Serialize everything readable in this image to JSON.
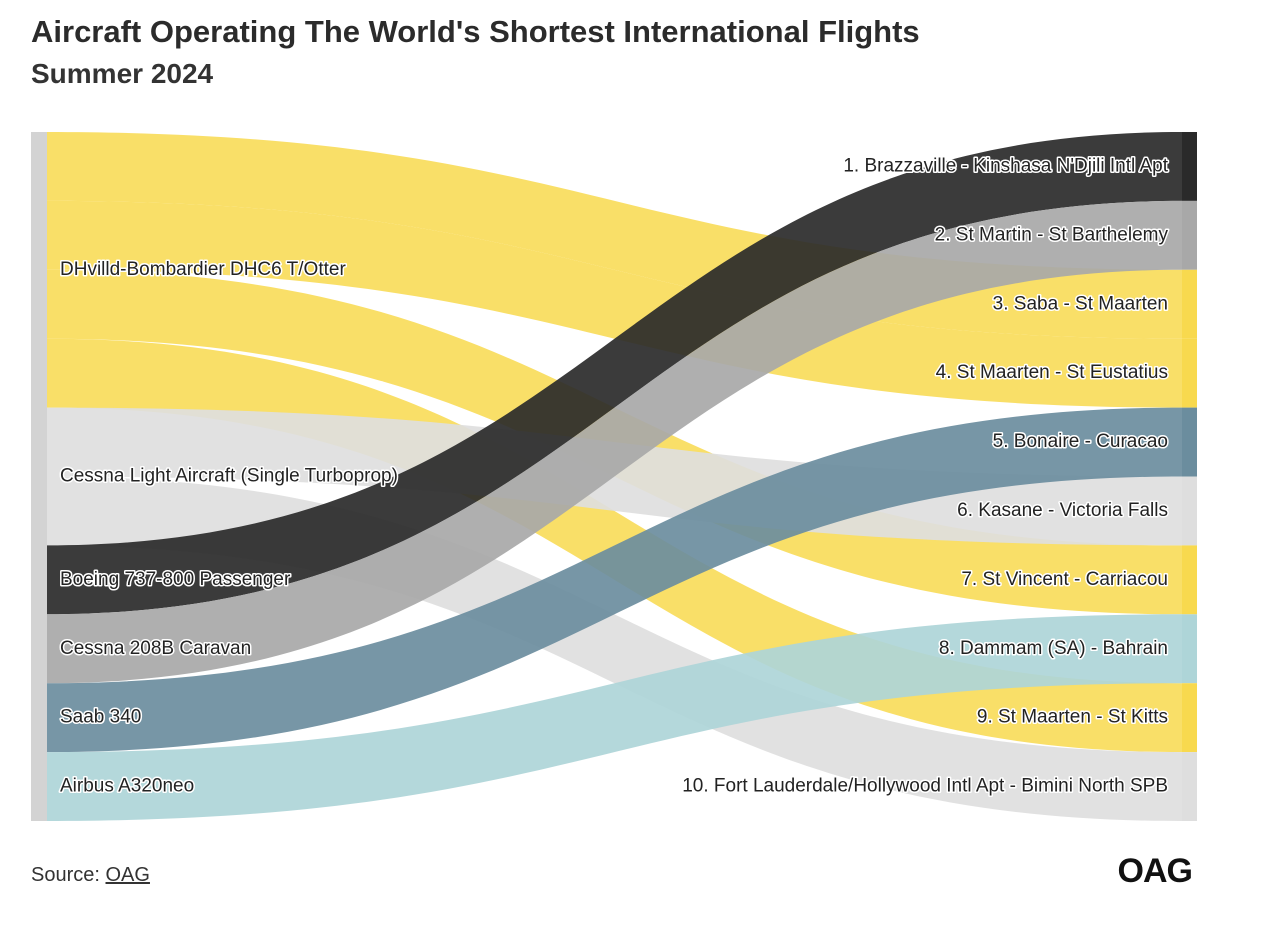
{
  "header": {
    "title": "Aircraft Operating The World's Shortest International Flights",
    "subtitle": "Summer 2024"
  },
  "footer": {
    "source_prefix": "Source:",
    "source_link": "OAG",
    "logo": "OAG"
  },
  "colors": {
    "yellow": "#f8d94e",
    "light_gray": "#dedede",
    "black": "#2a2a2a",
    "mid_gray": "#a8a8a8",
    "slate_blue": "#6b8d9e",
    "light_teal": "#aed5d8",
    "node_bar": "#d3d3d3"
  },
  "chart_data": {
    "type": "sankey",
    "sources": [
      {
        "name": "DHvilld-Bombardier DHC6 T/Otter",
        "color": "#f8d94e"
      },
      {
        "name": "Cessna Light Aircraft (Single Turboprop)",
        "color": "#dedede"
      },
      {
        "name": "Boeing 737-800 Passenger",
        "color": "#2a2a2a"
      },
      {
        "name": "Cessna 208B Caravan",
        "color": "#a8a8a8"
      },
      {
        "name": "Saab 340",
        "color": "#6b8d9e"
      },
      {
        "name": "Airbus A320neo",
        "color": "#aed5d8"
      }
    ],
    "targets": [
      "1. Brazzaville - Kinshasa N'Djili Intl Apt",
      "2. St Martin - St Barthelemy",
      "3. Saba - St Maarten",
      "4. St Maarten - St Eustatius",
      "5. Bonaire - Curacao",
      "6. Kasane - Victoria Falls",
      "7. St Vincent - Carriacou",
      "8. Dammam (SA) - Bahrain",
      "9. St Maarten - St Kitts",
      "10. Fort Lauderdale/Hollywood Intl Apt - Bimini North SPB"
    ],
    "links": [
      {
        "source": 0,
        "target": 2,
        "value": 1
      },
      {
        "source": 0,
        "target": 3,
        "value": 1
      },
      {
        "source": 0,
        "target": 6,
        "value": 1
      },
      {
        "source": 0,
        "target": 8,
        "value": 1
      },
      {
        "source": 1,
        "target": 5,
        "value": 1
      },
      {
        "source": 1,
        "target": 9,
        "value": 1
      },
      {
        "source": 2,
        "target": 0,
        "value": 1
      },
      {
        "source": 3,
        "target": 1,
        "value": 1
      },
      {
        "source": 4,
        "target": 4,
        "value": 1
      },
      {
        "source": 5,
        "target": 7,
        "value": 1
      }
    ]
  }
}
